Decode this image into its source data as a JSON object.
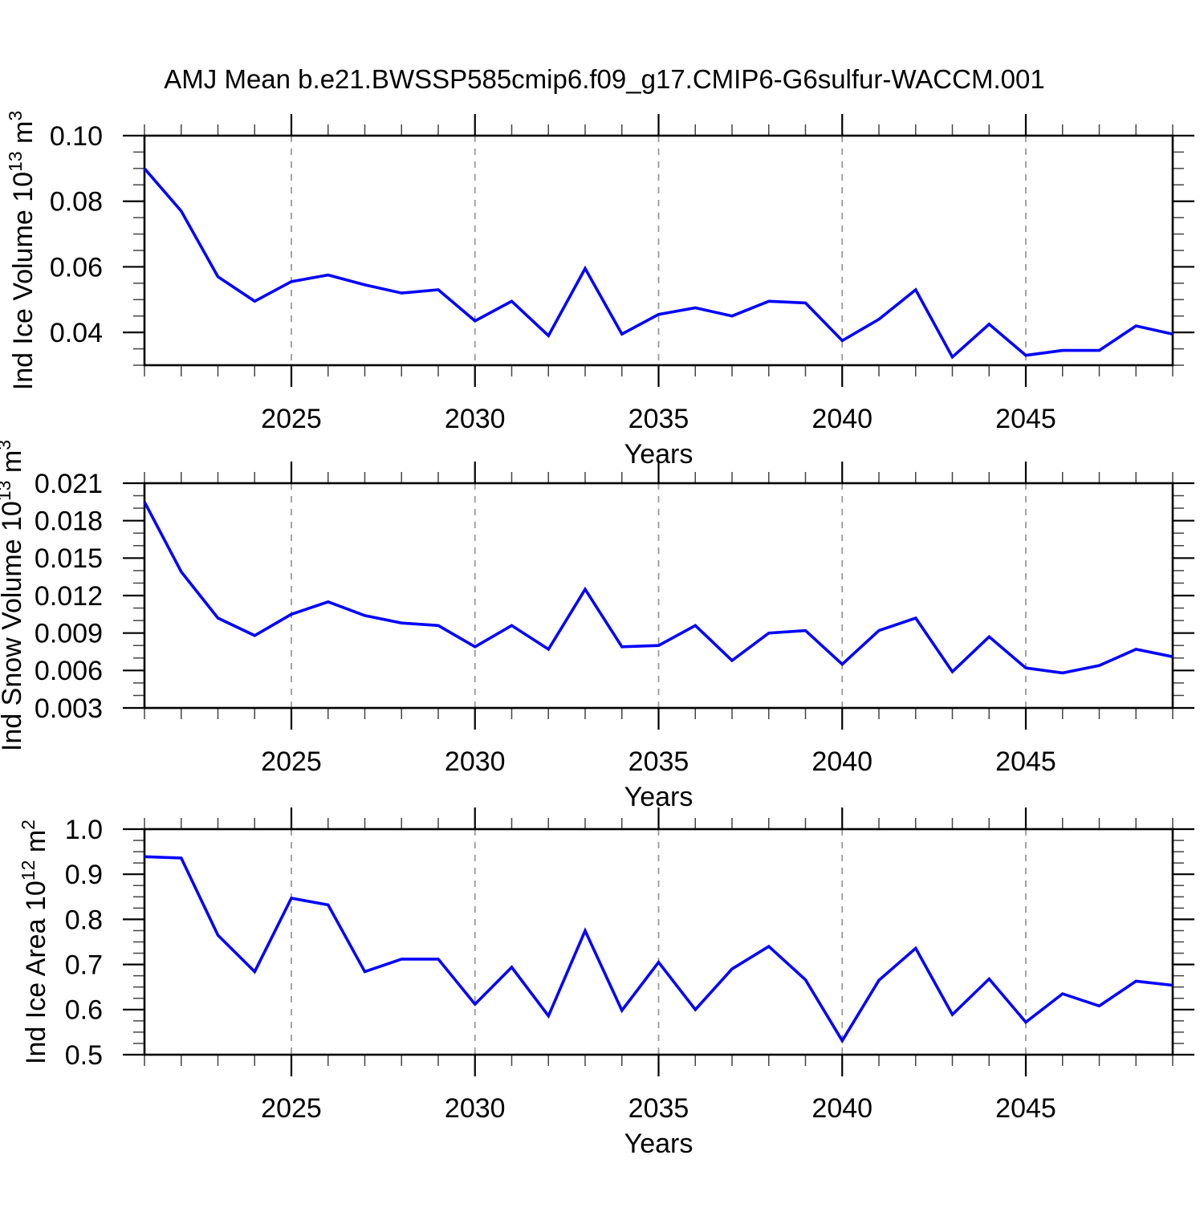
{
  "title": "AMJ Mean b.e21.BWSSP585cmip6.f09_g17.CMIP6-G6sulfur-WACCM.001",
  "colors": {
    "line": "#0000ff",
    "grid": "#999999",
    "axis": "#000000",
    "background": "#ffffff"
  },
  "x_axis": {
    "label": "Years",
    "range": [
      2021,
      2049
    ],
    "major_ticks": [
      2025,
      2030,
      2035,
      2040,
      2045
    ],
    "major_tick_labels": [
      "2025",
      "2030",
      "2035",
      "2040",
      "2045"
    ],
    "minor_step": 1
  },
  "chart_data": [
    {
      "type": "line",
      "name": "ind-ice-volume",
      "ylabel_parts": [
        {
          "text": "Ind Ice Volume 10",
          "sup": false
        },
        {
          "text": "13",
          "sup": true
        },
        {
          "text": " m",
          "sup": false
        },
        {
          "text": "3",
          "sup": true
        }
      ],
      "ylim": [
        0.03,
        0.1
      ],
      "y_major": [
        0.04,
        0.06,
        0.08,
        0.1
      ],
      "y_major_labels": [
        "0.04",
        "0.06",
        "0.08",
        "0.10"
      ],
      "y_minor_step": 0.005,
      "x": [
        2021,
        2022,
        2023,
        2024,
        2025,
        2026,
        2027,
        2028,
        2029,
        2030,
        2031,
        2032,
        2033,
        2034,
        2035,
        2036,
        2037,
        2038,
        2039,
        2040,
        2041,
        2042,
        2043,
        2044,
        2045,
        2046,
        2047,
        2048,
        2049
      ],
      "values": [
        0.09,
        0.077,
        0.057,
        0.0495,
        0.0555,
        0.0575,
        0.0545,
        0.052,
        0.053,
        0.0435,
        0.0495,
        0.039,
        0.0595,
        0.0395,
        0.0455,
        0.0475,
        0.045,
        0.0495,
        0.049,
        0.0375,
        0.044,
        0.053,
        0.0325,
        0.0425,
        0.033,
        0.0345,
        0.0345,
        0.042,
        0.0395
      ]
    },
    {
      "type": "line",
      "name": "ind-snow-volume",
      "ylabel_parts": [
        {
          "text": "Ind Snow Volume 10",
          "sup": false
        },
        {
          "text": "13",
          "sup": true
        },
        {
          "text": " m",
          "sup": false
        },
        {
          "text": "3",
          "sup": true
        }
      ],
      "ylim": [
        0.003,
        0.021
      ],
      "y_major": [
        0.003,
        0.006,
        0.009,
        0.012,
        0.015,
        0.018,
        0.021
      ],
      "y_major_labels": [
        "0.003",
        "0.006",
        "0.009",
        "0.012",
        "0.015",
        "0.018",
        "0.021"
      ],
      "y_minor_step": 0.001,
      "x": [
        2021,
        2022,
        2023,
        2024,
        2025,
        2026,
        2027,
        2028,
        2029,
        2030,
        2031,
        2032,
        2033,
        2034,
        2035,
        2036,
        2037,
        2038,
        2039,
        2040,
        2041,
        2042,
        2043,
        2044,
        2045,
        2046,
        2047,
        2048,
        2049
      ],
      "values": [
        0.0195,
        0.0139,
        0.0102,
        0.0088,
        0.0105,
        0.0115,
        0.0104,
        0.0098,
        0.0096,
        0.0079,
        0.0096,
        0.0077,
        0.0125,
        0.0079,
        0.008,
        0.0096,
        0.0068,
        0.009,
        0.0092,
        0.0065,
        0.0092,
        0.0102,
        0.0059,
        0.0087,
        0.0062,
        0.0058,
        0.0064,
        0.0077,
        0.0071
      ]
    },
    {
      "type": "line",
      "name": "ind-ice-area",
      "ylabel_parts": [
        {
          "text": "Ind Ice Area 10",
          "sup": false
        },
        {
          "text": "12",
          "sup": true
        },
        {
          "text": " m",
          "sup": false
        },
        {
          "text": "2",
          "sup": true
        }
      ],
      "ylim": [
        0.5,
        1.0
      ],
      "y_major": [
        0.5,
        0.6,
        0.7,
        0.8,
        0.9,
        1.0
      ],
      "y_major_labels": [
        "0.5",
        "0.6",
        "0.7",
        "0.8",
        "0.9",
        "1.0"
      ],
      "y_minor_step": 0.025,
      "x": [
        2021,
        2022,
        2023,
        2024,
        2025,
        2026,
        2027,
        2028,
        2029,
        2030,
        2031,
        2032,
        2033,
        2034,
        2035,
        2036,
        2037,
        2038,
        2039,
        2040,
        2041,
        2042,
        2043,
        2044,
        2045,
        2046,
        2047,
        2048,
        2049
      ],
      "values": [
        0.939,
        0.936,
        0.765,
        0.684,
        0.847,
        0.832,
        0.684,
        0.712,
        0.712,
        0.612,
        0.694,
        0.586,
        0.775,
        0.598,
        0.705,
        0.6,
        0.69,
        0.74,
        0.666,
        0.531,
        0.665,
        0.736,
        0.589,
        0.668,
        0.572,
        0.635,
        0.608,
        0.663,
        0.654
      ]
    }
  ]
}
